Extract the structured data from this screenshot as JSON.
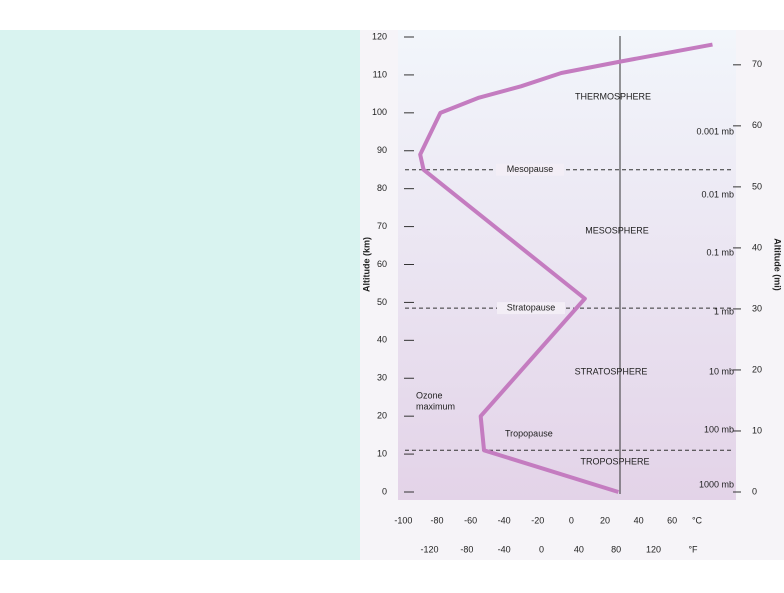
{
  "chart_data": {
    "type": "line",
    "x": [
      28,
      -52,
      -54,
      8,
      -88,
      -90,
      -78,
      -55,
      -30,
      -6,
      29,
      84
    ],
    "series": [
      {
        "color": "#c47cc0",
        "values": [
          0,
          11,
          20,
          51,
          85,
          89,
          100,
          104,
          107,
          110.5,
          113.5,
          118
        ]
      }
    ],
    "xlim": [
      -105,
      98
    ],
    "xticks": [
      -100,
      -80,
      -60,
      -40,
      -20,
      0,
      20,
      40,
      60
    ],
    "x_unit": "°C",
    "x2lim": [
      -157,
      208.4
    ],
    "x2ticks": [
      -120,
      -80,
      -40,
      0,
      40,
      80,
      120
    ],
    "x2_unit": "°F",
    "ylim": [
      0,
      120
    ],
    "yticks": [
      0,
      10,
      20,
      30,
      40,
      50,
      60,
      70,
      80,
      90,
      100,
      110,
      120
    ],
    "ylabel": "Altitude (km)",
    "y2lim": [
      0,
      74.56
    ],
    "y2ticks": [
      0,
      10,
      20,
      30,
      40,
      50,
      60,
      70
    ],
    "y2label": "Altitude (mi)",
    "levels": [
      {
        "label": "Mesopause",
        "value": 85
      },
      {
        "label": "Stratopause",
        "value": 48.5
      },
      {
        "label": "Tropopause",
        "value": 11
      }
    ],
    "layers": [
      "THERMOSPHERE",
      "MESOSPHERE",
      "STRATOSPHERE",
      "TROPOSPHERE"
    ],
    "pressures": [
      "0.001 mb",
      "0.01 mb",
      "0.1 mb",
      "1 mb",
      "10 mb",
      "100 mb",
      "1000 mb"
    ],
    "annotation": [
      "Ozone",
      "maximum"
    ]
  }
}
